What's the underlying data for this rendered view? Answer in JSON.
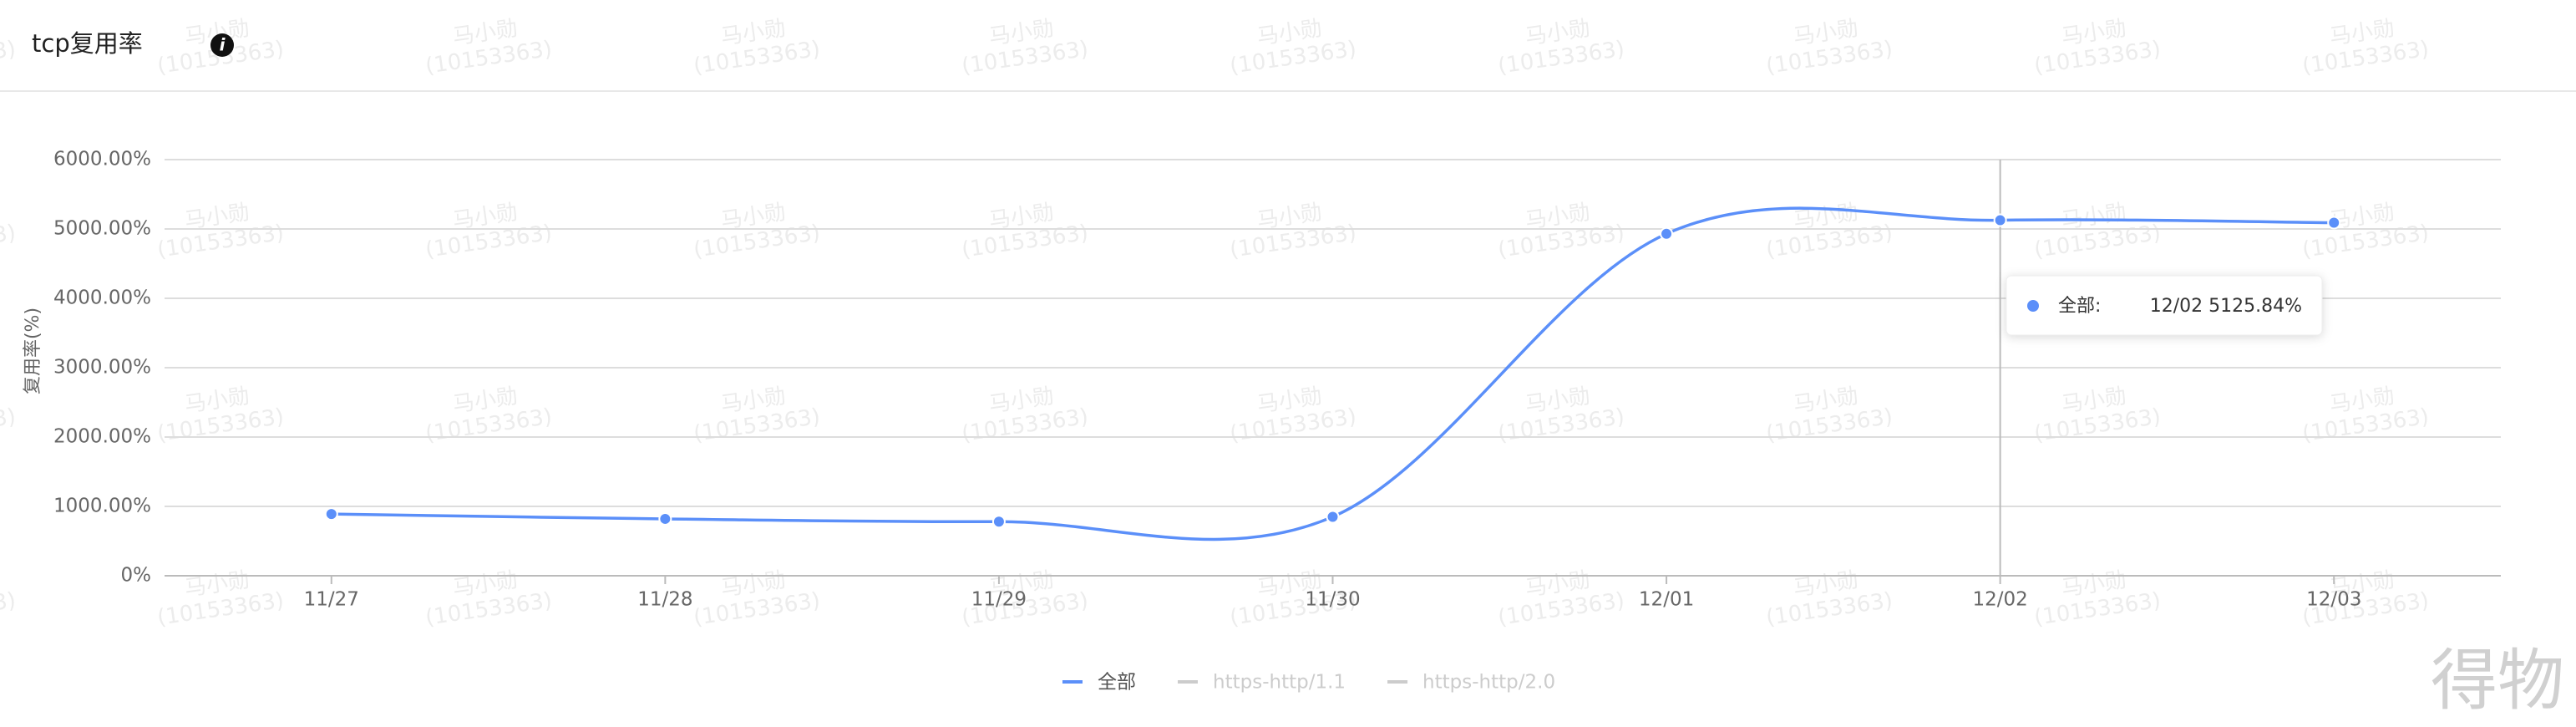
{
  "header": {
    "title": "tcp复用率",
    "info_icon": "i"
  },
  "chart_data": {
    "type": "line",
    "y_label": "复用率(%)",
    "categories": [
      "11/27",
      "11/28",
      "11/29",
      "11/30",
      "12/01",
      "12/02",
      "12/03"
    ],
    "series": [
      {
        "name": "全部",
        "color": "#5b8ff9",
        "visible": true,
        "values": [
          890,
          820,
          780,
          850,
          4930,
          5125.84,
          5090
        ]
      },
      {
        "name": "https-http/1.1",
        "color": "#5ad8a6",
        "visible": false,
        "values": [
          null,
          null,
          null,
          null,
          null,
          null,
          null
        ]
      },
      {
        "name": "https-http/2.0",
        "color": "#5d7092",
        "visible": false,
        "values": [
          null,
          null,
          null,
          null,
          null,
          null,
          null
        ]
      }
    ],
    "ylim": [
      0,
      6000
    ],
    "yticks": [
      {
        "value": 0,
        "label": "0%"
      },
      {
        "value": 1000,
        "label": "1000.00%"
      },
      {
        "value": 2000,
        "label": "2000.00%"
      },
      {
        "value": 3000,
        "label": "3000.00%"
      },
      {
        "value": 4000,
        "label": "4000.00%"
      },
      {
        "value": 5000,
        "label": "5000.00%"
      },
      {
        "value": 6000,
        "label": "6000.00%"
      }
    ],
    "grid": true,
    "smooth": true,
    "legend": "bottom",
    "tooltip": {
      "category_index": 5,
      "series_label": "全部:",
      "text": "12/02 5125.84%"
    }
  },
  "watermark": {
    "name": "马小勋",
    "id": "(10153363)",
    "logo": "得物"
  }
}
